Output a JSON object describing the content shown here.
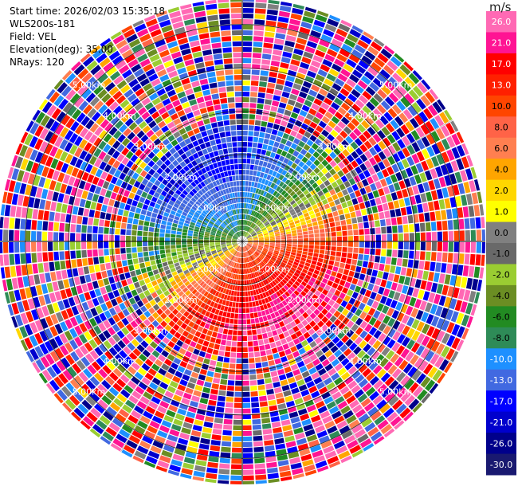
{
  "header": {
    "start_time": "Start time: 2026/02/03 15:35:18",
    "instrument": "WLS200s-181",
    "field": "Field: VEL",
    "elevation": "Elevation(deg): 35.00",
    "nrays": "NRays: 120"
  },
  "colorbar": {
    "unit": "m/s",
    "ticks": [
      "26.0",
      "21.0",
      "17.0",
      "13.0",
      "10.0",
      "8.0",
      "6.0",
      "4.0",
      "2.0",
      "1.0",
      "0.0",
      "-1.0",
      "-2.0",
      "-4.0",
      "-6.0",
      "-8.0",
      "-10.0",
      "-13.0",
      "-17.0",
      "-21.0",
      "-26.0",
      "-30.0"
    ],
    "colors": [
      "#ff69b4",
      "#ff1493",
      "#ff0000",
      "#ff2000",
      "#ff4500",
      "#ff6347",
      "#ff7f50",
      "#ffa500",
      "#ffd700",
      "#ffff00",
      "#808080",
      "#696969",
      "#9acd32",
      "#6b8e23",
      "#228b22",
      "#2e8b57",
      "#1e90ff",
      "#4169e1",
      "#0000ff",
      "#0000cd",
      "#00008b",
      "#191970"
    ]
  },
  "chart_data": {
    "type": "ppi",
    "field": "VEL",
    "units": "m/s",
    "elevation_deg": 35.0,
    "nrays": 120,
    "range_rings_km": [
      1.0,
      2.0,
      3.0,
      4.0,
      5.0
    ],
    "ring_labels": [
      "1.00km",
      "2.00km",
      "3.00km",
      "4.00km",
      "5.00km"
    ],
    "max_range_km": 5.6,
    "vmin": -30.0,
    "vmax": 30.0
  }
}
